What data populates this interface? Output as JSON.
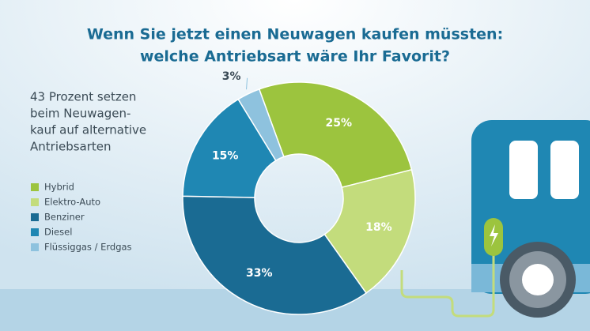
{
  "chart_data": {
    "type": "donut",
    "title": [
      "Wenn Sie jetzt einen Neuwagen kaufen müssten:",
      "welche Antriebsart wäre Ihr Favorit?"
    ],
    "annotation": [
      "43 Prozent setzen",
      "beim Neuwagen-",
      "kauf auf alternative",
      "Antriebsarten"
    ],
    "categories": [
      "Hybrid",
      "Elektro-Auto",
      "Benziner",
      "Diesel",
      "Flüssiggas / Erdgas"
    ],
    "values": [
      25,
      18,
      33,
      15,
      3
    ],
    "value_labels": [
      "25%",
      "18%",
      "33%",
      "15%",
      "3%"
    ],
    "colors": [
      "#9cc43e",
      "#c3dc7c",
      "#1a6b93",
      "#1f87b3",
      "#8ec2de"
    ],
    "legend": "left"
  }
}
